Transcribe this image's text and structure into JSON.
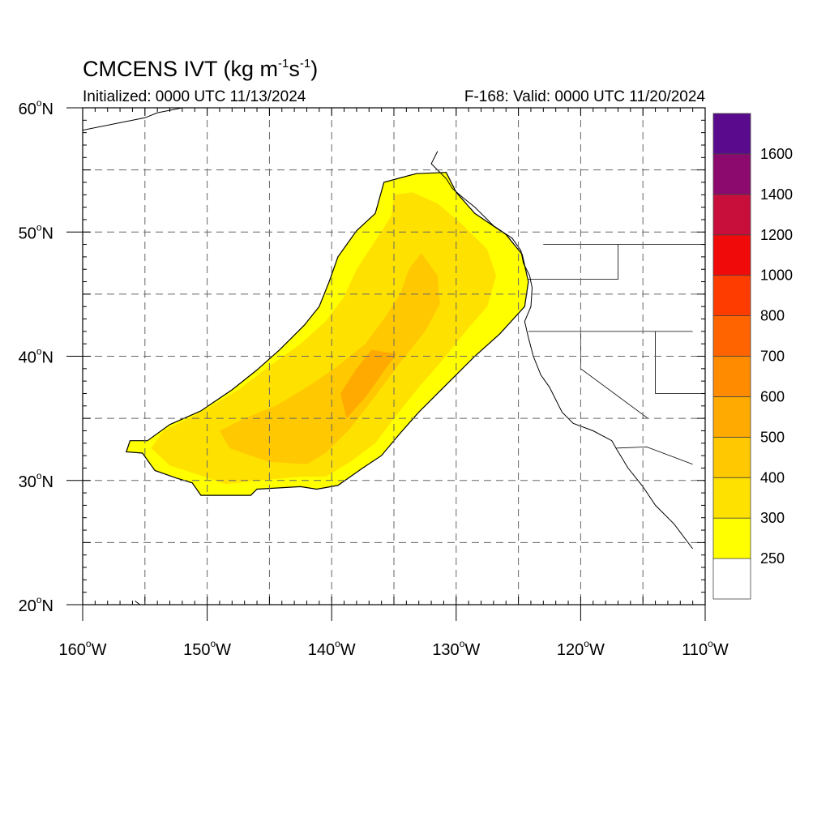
{
  "title": {
    "main": "CMCENS IVT (kg m",
    "exp1": "-1",
    "mid": "s",
    "exp2": "-1",
    "close": ")"
  },
  "initialized": "Initialized: 0000 UTC 11/13/2024",
  "valid": "F-168: Valid: 0000 UTC 11/20/2024",
  "map": {
    "lon_range": [
      -160,
      -110
    ],
    "lat_range": [
      20,
      60
    ],
    "lon_ticks": [
      {
        "value": -160,
        "deg": "160",
        "hemi": "W"
      },
      {
        "value": -150,
        "deg": "150",
        "hemi": "W"
      },
      {
        "value": -140,
        "deg": "140",
        "hemi": "W"
      },
      {
        "value": -130,
        "deg": "130",
        "hemi": "W"
      },
      {
        "value": -120,
        "deg": "120",
        "hemi": "W"
      },
      {
        "value": -110,
        "deg": "110",
        "hemi": "W"
      }
    ],
    "lat_ticks": [
      {
        "value": 20,
        "deg": "20",
        "hemi": "N"
      },
      {
        "value": 30,
        "deg": "30",
        "hemi": "N"
      },
      {
        "value": 40,
        "deg": "40",
        "hemi": "N"
      },
      {
        "value": 50,
        "deg": "50",
        "hemi": "N"
      },
      {
        "value": 60,
        "deg": "60",
        "hemi": "N"
      }
    ],
    "grid_lons": [
      -155,
      -150,
      -145,
      -140,
      -135,
      -130,
      -125,
      -120,
      -115
    ],
    "grid_lats": [
      25,
      30,
      35,
      40,
      45,
      50,
      55
    ],
    "ivt_field": {
      "outline_250": [
        [
          -150.5,
          28.8
        ],
        [
          -146.5,
          28.8
        ],
        [
          -146,
          29.3
        ],
        [
          -142.5,
          29.5
        ],
        [
          -141.2,
          29.3
        ],
        [
          -139.5,
          29.6
        ],
        [
          -137.5,
          31
        ],
        [
          -136,
          32
        ],
        [
          -134.5,
          33.8
        ],
        [
          -133,
          35.5
        ],
        [
          -131,
          37.5
        ],
        [
          -128.5,
          40
        ],
        [
          -126.5,
          41.8
        ],
        [
          -124.5,
          44
        ],
        [
          -124.2,
          46
        ],
        [
          -124.7,
          48.2
        ],
        [
          -126,
          49.8
        ],
        [
          -128.5,
          51.5
        ],
        [
          -130,
          53.2
        ],
        [
          -130.8,
          54.8
        ],
        [
          -133.2,
          54.7
        ],
        [
          -135.8,
          54
        ],
        [
          -136.5,
          51.5
        ],
        [
          -138,
          50.1
        ],
        [
          -139.5,
          48
        ],
        [
          -140.2,
          46
        ],
        [
          -141,
          44
        ],
        [
          -142.2,
          42.5
        ],
        [
          -144.2,
          40.5
        ],
        [
          -146,
          38.9
        ],
        [
          -148,
          37.3
        ],
        [
          -150.5,
          35.6
        ],
        [
          -153,
          34.5
        ],
        [
          -154.8,
          33.2
        ],
        [
          -156.2,
          33.2
        ],
        [
          -156.5,
          32.3
        ],
        [
          -155.2,
          32.2
        ],
        [
          -154.2,
          30.8
        ],
        [
          -152.5,
          30.2
        ],
        [
          -151.2,
          29.8
        ]
      ],
      "levels": [
        {
          "threshold": 300,
          "poly": [
            [
              -148.5,
              29.7
            ],
            [
              -146,
              30
            ],
            [
              -142.5,
              30.3
            ],
            [
              -140.5,
              30.3
            ],
            [
              -138.5,
              31.5
            ],
            [
              -136.5,
              33
            ],
            [
              -135,
              35
            ],
            [
              -133,
              37.5
            ],
            [
              -131,
              39.8
            ],
            [
              -129,
              42.3
            ],
            [
              -127.5,
              44
            ],
            [
              -126.8,
              46.5
            ],
            [
              -127.5,
              48.6
            ],
            [
              -129.5,
              50.6
            ],
            [
              -131.5,
              52.3
            ],
            [
              -133.5,
              53.2
            ],
            [
              -135,
              53
            ],
            [
              -135.2,
              51.3
            ],
            [
              -136.5,
              49.3
            ],
            [
              -138,
              47
            ],
            [
              -139,
              44.8
            ],
            [
              -140.5,
              42.8
            ],
            [
              -142.5,
              41
            ],
            [
              -145,
              39.2
            ],
            [
              -147.5,
              37.3
            ],
            [
              -150.5,
              35.5
            ],
            [
              -153.5,
              34
            ],
            [
              -154.5,
              32.6
            ],
            [
              -153,
              31.2
            ],
            [
              -150.8,
              30.5
            ]
          ]
        },
        {
          "threshold": 400,
          "poly": [
            [
              -145,
              31.5
            ],
            [
              -142,
              31.3
            ],
            [
              -140.5,
              32.2
            ],
            [
              -138.5,
              34.2
            ],
            [
              -136.5,
              36.8
            ],
            [
              -134.5,
              39.5
            ],
            [
              -132.5,
              42
            ],
            [
              -131.3,
              44.2
            ],
            [
              -131.5,
              46.5
            ],
            [
              -132.8,
              48.3
            ],
            [
              -133.8,
              47
            ],
            [
              -134.5,
              45
            ],
            [
              -135.8,
              43
            ],
            [
              -137.3,
              41
            ],
            [
              -139.5,
              39.2
            ],
            [
              -142,
              37.5
            ],
            [
              -144.5,
              36
            ],
            [
              -147,
              35
            ],
            [
              -149,
              34
            ],
            [
              -148.2,
              32.6
            ],
            [
              -146.5,
              32
            ]
          ]
        },
        {
          "threshold": 500,
          "poly": [
            [
              -138.8,
              35
            ],
            [
              -137.2,
              36.8
            ],
            [
              -135.8,
              38.8
            ],
            [
              -134.8,
              40.2
            ],
            [
              -136.8,
              40.5
            ],
            [
              -138,
              39
            ],
            [
              -139.3,
              37
            ]
          ]
        }
      ]
    }
  },
  "colorbar": {
    "labels": [
      "250",
      "300",
      "400",
      "500",
      "600",
      "700",
      "800",
      "1000",
      "1200",
      "1400",
      "1600"
    ],
    "colors": [
      "#ffffff",
      "#ffff00",
      "#ffe100",
      "#ffc800",
      "#ffaa00",
      "#ff8c00",
      "#ff6400",
      "#ff3c00",
      "#f00a0a",
      "#c80f3c",
      "#8c0a6e",
      "#5a0a8c"
    ]
  }
}
